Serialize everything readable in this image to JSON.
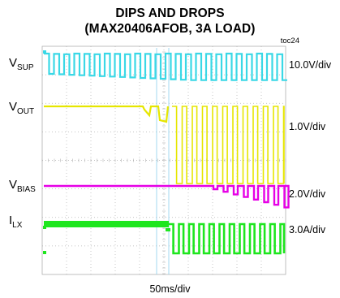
{
  "title_line1": "DIPS AND DROPS",
  "title_line2": "(MAX20406AFOB, 3A LOAD)",
  "figure_id": "toc24",
  "x_scale": "50ms/div",
  "colors": {
    "vsup": "#3ad8e6",
    "vout": "#e6e600",
    "vbias": "#e600e6",
    "ilx": "#1ee61e",
    "grid": "#b0b0b0",
    "cursor": "#9ad6f0"
  },
  "chart_data": {
    "type": "oscilloscope",
    "title": "DIPS AND DROPS (MAX20406AFOB, 3A LOAD)",
    "x_scale": "50ms/div",
    "grid": true,
    "divisions": {
      "x": 10,
      "y": 8
    },
    "channels": [
      {
        "name": "VSUP",
        "label_main": "V",
        "label_sub": "SUP",
        "scale": "10.0V/div",
        "color": "#3ad8e6"
      },
      {
        "name": "VOUT",
        "label_main": "V",
        "label_sub": "OUT",
        "scale": "1.0V/div",
        "color": "#e6e600"
      },
      {
        "name": "VBIAS",
        "label_main": "V",
        "label_sub": "BIAS",
        "scale": "2.0V/div",
        "color": "#e600e6"
      },
      {
        "name": "ILX",
        "label_main": "I",
        "label_sub": "LX",
        "scale": "3.0A/div",
        "color": "#1ee61e"
      }
    ]
  }
}
